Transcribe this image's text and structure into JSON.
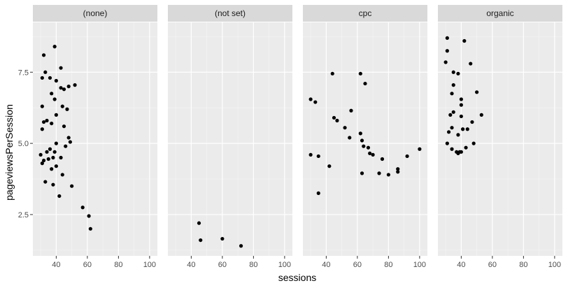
{
  "chart_data": {
    "type": "scatter",
    "xlabel": "sessions",
    "ylabel": "pageviewsPerSession",
    "xlim": [
      25,
      105
    ],
    "ylim": [
      1.05,
      9.25
    ],
    "x_ticks": [
      40,
      60,
      80,
      100
    ],
    "y_ticks": [
      2.5,
      5.0,
      7.5
    ],
    "x_tick_labels": [
      "40",
      "60",
      "80",
      "100"
    ],
    "y_tick_labels": [
      "2.5",
      "5.0",
      "7.5"
    ],
    "grid": true,
    "point_color": "#000000",
    "panel_background": "#ebebeb",
    "strip_background": "#d9d9d9",
    "panels": [
      {
        "name": "(none)",
        "points": [
          {
            "x": 30,
            "y": 4.6
          },
          {
            "x": 31,
            "y": 7.3
          },
          {
            "x": 31,
            "y": 6.3
          },
          {
            "x": 31,
            "y": 5.5
          },
          {
            "x": 31,
            "y": 4.3
          },
          {
            "x": 32,
            "y": 8.1
          },
          {
            "x": 32,
            "y": 5.75
          },
          {
            "x": 32,
            "y": 4.4
          },
          {
            "x": 33,
            "y": 7.5
          },
          {
            "x": 33,
            "y": 3.65
          },
          {
            "x": 34,
            "y": 5.8
          },
          {
            "x": 34,
            "y": 4.7
          },
          {
            "x": 35,
            "y": 4.45
          },
          {
            "x": 36,
            "y": 7.3
          },
          {
            "x": 36,
            "y": 4.8
          },
          {
            "x": 37,
            "y": 6.75
          },
          {
            "x": 37,
            "y": 5.7
          },
          {
            "x": 37,
            "y": 4.1
          },
          {
            "x": 38,
            "y": 4.5
          },
          {
            "x": 38,
            "y": 3.55
          },
          {
            "x": 39,
            "y": 8.4
          },
          {
            "x": 39,
            "y": 6.55
          },
          {
            "x": 39,
            "y": 4.7
          },
          {
            "x": 40,
            "y": 7.2
          },
          {
            "x": 40,
            "y": 6.0
          },
          {
            "x": 40,
            "y": 5.0
          },
          {
            "x": 40,
            "y": 4.2
          },
          {
            "x": 42,
            "y": 3.15
          },
          {
            "x": 43,
            "y": 7.65
          },
          {
            "x": 43,
            "y": 6.95
          },
          {
            "x": 43,
            "y": 4.5
          },
          {
            "x": 44,
            "y": 6.3
          },
          {
            "x": 44,
            "y": 3.9
          },
          {
            "x": 45,
            "y": 6.9
          },
          {
            "x": 45,
            "y": 5.6
          },
          {
            "x": 46,
            "y": 4.9
          },
          {
            "x": 47,
            "y": 6.2
          },
          {
            "x": 48,
            "y": 7.0
          },
          {
            "x": 48,
            "y": 5.2
          },
          {
            "x": 49,
            "y": 5.05
          },
          {
            "x": 50,
            "y": 3.5
          },
          {
            "x": 52,
            "y": 7.05
          },
          {
            "x": 57,
            "y": 2.75
          },
          {
            "x": 61,
            "y": 2.45
          },
          {
            "x": 62,
            "y": 2.0
          }
        ]
      },
      {
        "name": "(not set)",
        "points": [
          {
            "x": 45,
            "y": 2.2
          },
          {
            "x": 46,
            "y": 1.6
          },
          {
            "x": 60,
            "y": 1.65
          },
          {
            "x": 72,
            "y": 1.4
          }
        ]
      },
      {
        "name": "cpc",
        "points": [
          {
            "x": 30,
            "y": 6.55
          },
          {
            "x": 30,
            "y": 4.6
          },
          {
            "x": 33,
            "y": 6.45
          },
          {
            "x": 35,
            "y": 4.55
          },
          {
            "x": 35,
            "y": 3.25
          },
          {
            "x": 42,
            "y": 4.2
          },
          {
            "x": 44,
            "y": 7.45
          },
          {
            "x": 45,
            "y": 5.9
          },
          {
            "x": 47,
            "y": 5.8
          },
          {
            "x": 52,
            "y": 5.55
          },
          {
            "x": 55,
            "y": 5.2
          },
          {
            "x": 56,
            "y": 6.15
          },
          {
            "x": 62,
            "y": 7.45
          },
          {
            "x": 62,
            "y": 5.35
          },
          {
            "x": 63,
            "y": 5.1
          },
          {
            "x": 63,
            "y": 3.95
          },
          {
            "x": 64,
            "y": 4.9
          },
          {
            "x": 65,
            "y": 7.1
          },
          {
            "x": 67,
            "y": 4.85
          },
          {
            "x": 68,
            "y": 4.65
          },
          {
            "x": 70,
            "y": 4.6
          },
          {
            "x": 74,
            "y": 3.95
          },
          {
            "x": 76,
            "y": 4.45
          },
          {
            "x": 80,
            "y": 3.9
          },
          {
            "x": 86,
            "y": 4.1
          },
          {
            "x": 86,
            "y": 4.0
          },
          {
            "x": 92,
            "y": 4.55
          },
          {
            "x": 100,
            "y": 4.8
          }
        ]
      },
      {
        "name": "organic",
        "points": [
          {
            "x": 30,
            "y": 7.85
          },
          {
            "x": 31,
            "y": 8.7
          },
          {
            "x": 31,
            "y": 8.25
          },
          {
            "x": 31,
            "y": 5.0
          },
          {
            "x": 32,
            "y": 5.4
          },
          {
            "x": 33,
            "y": 6.0
          },
          {
            "x": 34,
            "y": 6.75
          },
          {
            "x": 34,
            "y": 5.55
          },
          {
            "x": 34,
            "y": 4.8
          },
          {
            "x": 35,
            "y": 7.5
          },
          {
            "x": 35,
            "y": 7.05
          },
          {
            "x": 35,
            "y": 6.1
          },
          {
            "x": 37,
            "y": 4.7
          },
          {
            "x": 38,
            "y": 7.45
          },
          {
            "x": 38,
            "y": 5.3
          },
          {
            "x": 38,
            "y": 4.65
          },
          {
            "x": 39,
            "y": 4.7
          },
          {
            "x": 40,
            "y": 6.55
          },
          {
            "x": 40,
            "y": 6.35
          },
          {
            "x": 40,
            "y": 5.95
          },
          {
            "x": 40,
            "y": 4.7
          },
          {
            "x": 41,
            "y": 5.5
          },
          {
            "x": 42,
            "y": 8.6
          },
          {
            "x": 43,
            "y": 4.85
          },
          {
            "x": 44,
            "y": 5.5
          },
          {
            "x": 46,
            "y": 7.8
          },
          {
            "x": 47,
            "y": 5.75
          },
          {
            "x": 48,
            "y": 5.0
          },
          {
            "x": 50,
            "y": 6.8
          },
          {
            "x": 53,
            "y": 6.0
          }
        ]
      }
    ]
  }
}
